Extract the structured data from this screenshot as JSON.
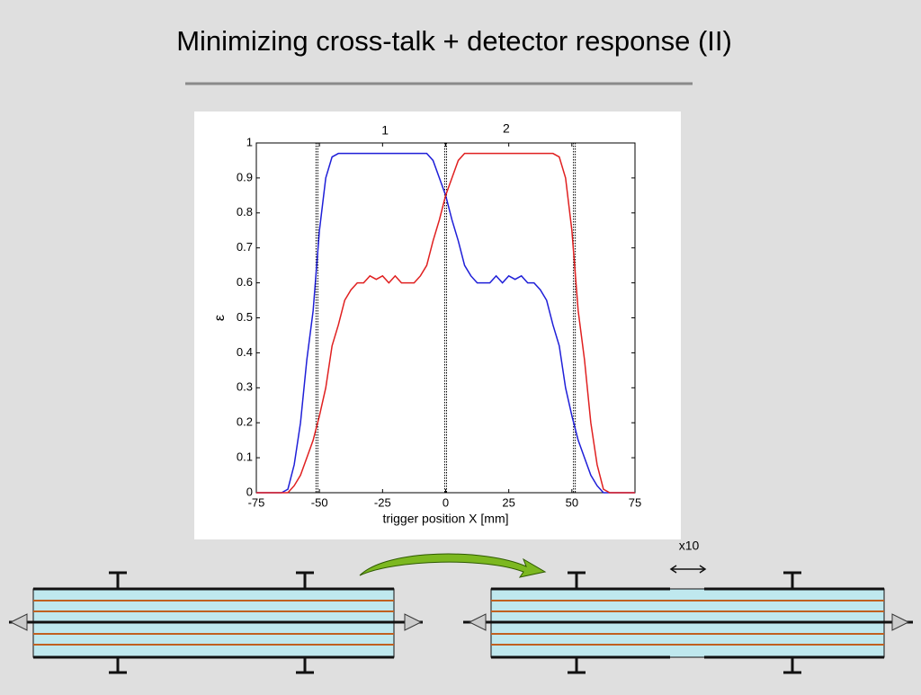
{
  "title": "Minimizing cross-talk + detector response (II)",
  "chart_data": {
    "type": "line",
    "step": true,
    "xlabel": "trigger position X [mm]",
    "ylabel": "ε",
    "x": [
      -75,
      -72.5,
      -70,
      -67.5,
      -65,
      -62.5,
      -60,
      -57.5,
      -55,
      -52.5,
      -50,
      -47.5,
      -45,
      -42.5,
      -40,
      -37.5,
      -35,
      -32.5,
      -30,
      -27.5,
      -25,
      -22.5,
      -20,
      -17.5,
      -15,
      -12.5,
      -10,
      -7.5,
      -5,
      -2.5,
      0,
      2.5,
      5,
      7.5,
      10,
      12.5,
      15,
      17.5,
      20,
      22.5,
      25,
      27.5,
      30,
      32.5,
      35,
      37.5,
      40,
      42.5,
      45,
      47.5,
      50,
      52.5,
      55,
      57.5,
      60,
      62.5,
      65,
      67.5,
      70,
      72.5,
      75
    ],
    "series": [
      {
        "color": "#1f1fd8",
        "values": [
          0,
          0,
          0,
          0,
          0,
          0.01,
          0.08,
          0.2,
          0.38,
          0.52,
          0.75,
          0.9,
          0.96,
          0.97,
          0.97,
          0.97,
          0.97,
          0.97,
          0.97,
          0.97,
          0.97,
          0.97,
          0.97,
          0.97,
          0.97,
          0.97,
          0.97,
          0.97,
          0.95,
          0.9,
          0.85,
          0.78,
          0.72,
          0.65,
          0.62,
          0.6,
          0.6,
          0.6,
          0.62,
          0.6,
          0.62,
          0.61,
          0.62,
          0.6,
          0.6,
          0.58,
          0.55,
          0.48,
          0.42,
          0.3,
          0.22,
          0.15,
          0.1,
          0.05,
          0.02,
          0,
          0,
          0,
          0,
          0,
          0
        ]
      },
      {
        "color": "#e02020",
        "values": [
          0,
          0,
          0,
          0,
          0,
          0,
          0.02,
          0.05,
          0.1,
          0.15,
          0.22,
          0.3,
          0.42,
          0.48,
          0.55,
          0.58,
          0.6,
          0.6,
          0.62,
          0.61,
          0.62,
          0.6,
          0.62,
          0.6,
          0.6,
          0.6,
          0.62,
          0.65,
          0.72,
          0.78,
          0.85,
          0.9,
          0.95,
          0.97,
          0.97,
          0.97,
          0.97,
          0.97,
          0.97,
          0.97,
          0.97,
          0.97,
          0.97,
          0.97,
          0.97,
          0.97,
          0.97,
          0.97,
          0.96,
          0.9,
          0.75,
          0.52,
          0.38,
          0.2,
          0.08,
          0.01,
          0,
          0,
          0,
          0,
          0
        ]
      }
    ],
    "xlim": [
      -75,
      75
    ],
    "xticks": [
      -75,
      -50,
      -25,
      0,
      25,
      50,
      75
    ],
    "ylim": [
      0,
      1
    ],
    "yticks": [
      0,
      0.1,
      0.2,
      0.3,
      0.4,
      0.5,
      0.6,
      0.7,
      0.8,
      0.9,
      1
    ],
    "vlines": [
      -51,
      0,
      51
    ],
    "annotations": [
      {
        "text": "1",
        "x": -24
      },
      {
        "text": "2",
        "x": 24
      }
    ]
  },
  "diagram": {
    "label": "x10"
  }
}
